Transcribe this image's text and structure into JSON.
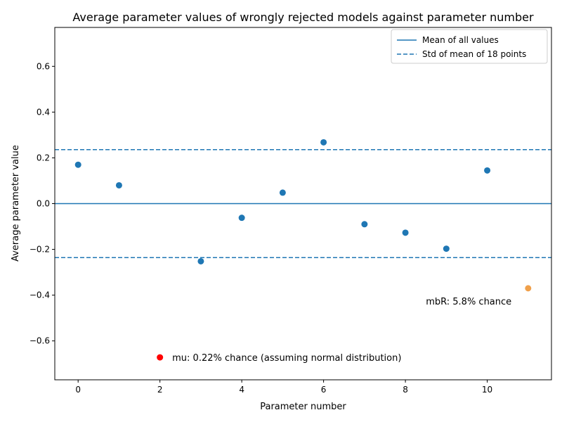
{
  "chart_data": {
    "type": "scatter",
    "title": "Average parameter values of wrongly rejected models against parameter number",
    "xlabel": "Parameter number",
    "ylabel": "Average parameter value",
    "xlim": [
      -0.57,
      11.57
    ],
    "ylim": [
      -0.77,
      0.77
    ],
    "x_ticks": [
      0,
      2,
      4,
      6,
      8,
      10
    ],
    "y_ticks": [
      -0.6,
      -0.4,
      -0.2,
      0.0,
      0.2,
      0.4,
      0.6
    ],
    "x_tick_labels": [
      "0",
      "2",
      "4",
      "6",
      "8",
      "10"
    ],
    "y_tick_labels": [
      "−0.6",
      "−0.4",
      "−0.2",
      "0.0",
      "0.2",
      "0.4",
      "0.6"
    ],
    "grid": false,
    "legend_position": "top-right",
    "points": [
      {
        "x": 0,
        "y": 0.17,
        "color": "#1f77b4"
      },
      {
        "x": 1,
        "y": 0.08,
        "color": "#1f77b4"
      },
      {
        "x": 2,
        "y": -0.672,
        "color": "#ff0000"
      },
      {
        "x": 3,
        "y": -0.252,
        "color": "#1f77b4"
      },
      {
        "x": 4,
        "y": -0.062,
        "color": "#1f77b4"
      },
      {
        "x": 5,
        "y": 0.048,
        "color": "#1f77b4"
      },
      {
        "x": 6,
        "y": 0.268,
        "color": "#1f77b4"
      },
      {
        "x": 7,
        "y": -0.09,
        "color": "#1f77b4"
      },
      {
        "x": 8,
        "y": -0.127,
        "color": "#1f77b4"
      },
      {
        "x": 9,
        "y": -0.197,
        "color": "#1f77b4"
      },
      {
        "x": 10,
        "y": 0.145,
        "color": "#1f77b4"
      },
      {
        "x": 11,
        "y": -0.37,
        "color": "#f0a04b"
      }
    ],
    "reference_lines": [
      {
        "name": "Mean of all values",
        "y": 0.0,
        "style": "solid",
        "color": "#1f77b4"
      },
      {
        "name": "Std of mean of 18 points",
        "y": 0.236,
        "style": "dashed",
        "color": "#1f77b4"
      },
      {
        "name": "Std of mean of 18 points",
        "y": -0.236,
        "style": "dashed",
        "color": "#1f77b4"
      }
    ],
    "legend": [
      {
        "label": "Mean of all values",
        "style": "solid"
      },
      {
        "label": "Std of mean of 18 points",
        "style": "dashed"
      }
    ],
    "annotations": [
      {
        "text": "mu: 0.22% chance (assuming normal distribution)",
        "x": 2.3,
        "y": -0.672
      },
      {
        "text": "mbR: 5.8% chance",
        "x": 8.5,
        "y": -0.425
      }
    ]
  }
}
